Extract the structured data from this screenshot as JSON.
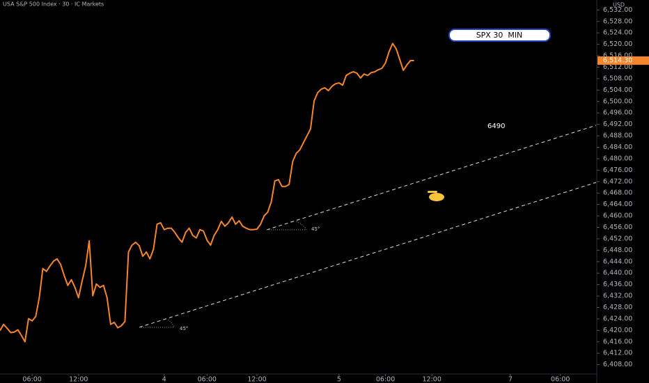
{
  "chart_data": {
    "type": "line",
    "title": "USA S&P 500 Index · 30 · IC Markets",
    "y_axis_label": "USD",
    "annotations": {
      "box": "SPX 30  MIN",
      "level": "6490",
      "angle_1": "45°",
      "angle_2": "45°"
    },
    "last_price": {
      "value": 6514.3,
      "label": "6,514.30"
    },
    "series": [
      {
        "name": "SPX",
        "color": "#f7862a",
        "values": [
          6419.9,
          6422.1,
          6420.7,
          6419.2,
          6419.4,
          6420.2,
          6418.2,
          6416.0,
          6424.1,
          6423.3,
          6424.8,
          6431.4,
          6441.6,
          6440.6,
          6442.5,
          6444.2,
          6445.0,
          6443.0,
          6439.1,
          6435.7,
          6437.7,
          6435.0,
          6431.4,
          6437.2,
          6442.5,
          6451.3,
          6432.1,
          6436.2,
          6435.0,
          6435.7,
          6431.4,
          6422.1,
          6422.8,
          6420.9,
          6421.6,
          6423.1,
          6447.4,
          6449.8,
          6450.8,
          6449.6,
          6445.9,
          6447.4,
          6445.0,
          6448.4,
          6457.1,
          6457.6,
          6455.2,
          6455.7,
          6455.7,
          6454.2,
          6452.3,
          6450.8,
          6454.2,
          6455.7,
          6453.2,
          6452.3,
          6455.2,
          6454.7,
          6451.5,
          6449.8,
          6453.2,
          6455.2,
          6458.1,
          6456.4,
          6457.6,
          6459.6,
          6457.1,
          6458.3,
          6456.4,
          6455.7,
          6455.2,
          6455.2,
          6455.4,
          6457.1,
          6460.0,
          6461.3,
          6464.9,
          6472.2,
          6472.7,
          6470.3,
          6470.3,
          6471.0,
          6479.0,
          6481.9,
          6483.1,
          6485.6,
          6488.0,
          6490.4,
          6500.2,
          6503.1,
          6504.3,
          6504.8,
          6503.8,
          6505.3,
          6506.2,
          6506.5,
          6505.7,
          6509.1,
          6509.9,
          6510.4,
          6509.9,
          6508.2,
          6509.6,
          6509.1,
          6510.1,
          6510.4,
          6511.1,
          6511.6,
          6513.5,
          6517.4,
          6520.3,
          6518.4,
          6514.7,
          6510.9,
          6512.8,
          6514.3,
          6514.3
        ]
      }
    ],
    "xlim": [
      0,
      167
    ],
    "xticks": [
      {
        "value": 9,
        "label": "06:00"
      },
      {
        "value": 22,
        "label": "12:00"
      },
      {
        "value": 46,
        "label": "4"
      },
      {
        "value": 58,
        "label": "06:00"
      },
      {
        "value": 72,
        "label": "12:00"
      },
      {
        "value": 95,
        "label": "5"
      },
      {
        "value": 108,
        "label": "06:00"
      },
      {
        "value": 121,
        "label": "12:00"
      },
      {
        "value": 143,
        "label": "7"
      },
      {
        "value": 157,
        "label": "06:00"
      }
    ],
    "ylim": [
      6405,
      6535
    ],
    "yticks": [
      {
        "value": 6408,
        "label": "6,408.00"
      },
      {
        "value": 6412,
        "label": "6,412.00"
      },
      {
        "value": 6416,
        "label": "6,416.00"
      },
      {
        "value": 6420,
        "label": "6,420.00"
      },
      {
        "value": 6424,
        "label": "6,424.00"
      },
      {
        "value": 6428,
        "label": "6,428.00"
      },
      {
        "value": 6432,
        "label": "6,432.00"
      },
      {
        "value": 6436,
        "label": "6,436.00"
      },
      {
        "value": 6440,
        "label": "6,440.00"
      },
      {
        "value": 6444,
        "label": "6,444.00"
      },
      {
        "value": 6448,
        "label": "6,448.00"
      },
      {
        "value": 6452,
        "label": "6,452.00"
      },
      {
        "value": 6456,
        "label": "6,456.00"
      },
      {
        "value": 6460,
        "label": "6,460.00"
      },
      {
        "value": 6464,
        "label": "6,464.00"
      },
      {
        "value": 6468,
        "label": "6,468.00"
      },
      {
        "value": 6472,
        "label": "6,472.00"
      },
      {
        "value": 6476,
        "label": "6,476.00"
      },
      {
        "value": 6480,
        "label": "6,480.00"
      },
      {
        "value": 6484,
        "label": "6,484.00"
      },
      {
        "value": 6488,
        "label": "6,488.00"
      },
      {
        "value": 6492,
        "label": "6,492.00"
      },
      {
        "value": 6496,
        "label": "6,496.00"
      },
      {
        "value": 6500,
        "label": "6,500.00"
      },
      {
        "value": 6504,
        "label": "6,504.00"
      },
      {
        "value": 6508,
        "label": "6,508.00"
      },
      {
        "value": 6512,
        "label": "6,512.00"
      },
      {
        "value": 6516,
        "label": "6,516.00"
      },
      {
        "value": 6520,
        "label": "6,520.00"
      },
      {
        "value": 6524,
        "label": "6,524.00"
      },
      {
        "value": 6528,
        "label": "6,528.00"
      },
      {
        "value": 6532,
        "label": "6,532.00"
      }
    ],
    "grid": false
  }
}
